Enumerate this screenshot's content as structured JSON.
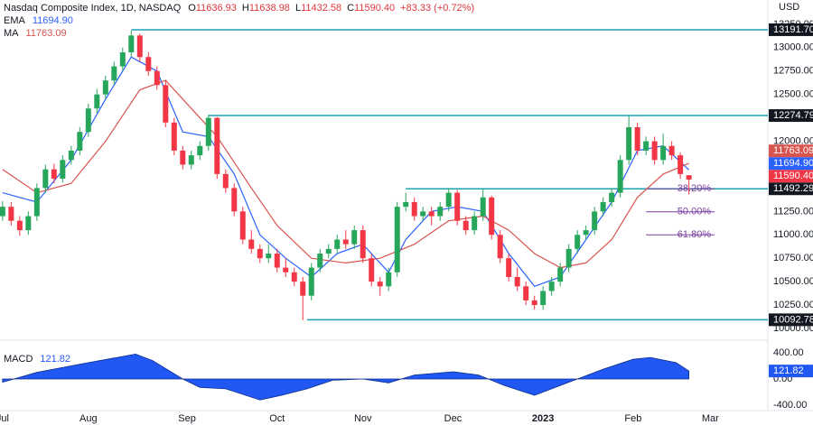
{
  "header": {
    "title": "Nasdaq Composite Index, 1D, NASDAQ",
    "ohlc": [
      {
        "label": "O",
        "value": "11636.93"
      },
      {
        "label": "H",
        "value": "11638.98"
      },
      {
        "label": "L",
        "value": "11432.58"
      },
      {
        "label": "C",
        "value": "11590.40"
      }
    ],
    "change": "+83.33 (+0.72%)"
  },
  "chart_data": [
    {
      "type": "candlestick",
      "currency": "USD",
      "up_color": "#26a65b",
      "down_color": "#f23645",
      "x": [
        0,
        2,
        4,
        6,
        8,
        10,
        12,
        14,
        16,
        18,
        20,
        22,
        24,
        26,
        28,
        30,
        32,
        34,
        36,
        38,
        40,
        42,
        44,
        46,
        48,
        50,
        52,
        54,
        56,
        58,
        60,
        62,
        64,
        66,
        68,
        70,
        72,
        74,
        76,
        78,
        80,
        82,
        84,
        86,
        88,
        90,
        92,
        94,
        96,
        98,
        100,
        102,
        104,
        106,
        108,
        110,
        112,
        114,
        116,
        118,
        120,
        122,
        124,
        126,
        128,
        130,
        132,
        134,
        136,
        138,
        140,
        142,
        144,
        146,
        148,
        150,
        152,
        154,
        156,
        158,
        160
      ],
      "candles": [
        [
          11200,
          11360,
          11150,
          11300
        ],
        [
          11300,
          11350,
          11100,
          11150
        ],
        [
          11150,
          11200,
          10990,
          11050
        ],
        [
          11050,
          11250,
          11000,
          11200
        ],
        [
          11200,
          11550,
          11150,
          11500
        ],
        [
          11500,
          11750,
          11450,
          11700
        ],
        [
          11700,
          11760,
          11550,
          11600
        ],
        [
          11600,
          11850,
          11560,
          11800
        ],
        [
          11800,
          11950,
          11750,
          11900
        ],
        [
          11900,
          12150,
          11850,
          12100
        ],
        [
          12100,
          12400,
          12050,
          12350
        ],
        [
          12350,
          12560,
          12300,
          12500
        ],
        [
          12500,
          12700,
          12450,
          12650
        ],
        [
          12650,
          12850,
          12600,
          12800
        ],
        [
          12800,
          13000,
          12750,
          12950
        ],
        [
          12950,
          13181,
          12900,
          13130
        ],
        [
          13130,
          13150,
          12850,
          12900
        ],
        [
          12900,
          12950,
          12700,
          12750
        ],
        [
          12750,
          12800,
          12550,
          12600
        ],
        [
          12600,
          12650,
          12150,
          12200
        ],
        [
          12200,
          12250,
          11850,
          11900
        ],
        [
          11900,
          11950,
          11700,
          11750
        ],
        [
          11750,
          11900,
          11700,
          11850
        ],
        [
          11850,
          12000,
          11800,
          11950
        ],
        [
          11950,
          12280,
          11900,
          12250
        ],
        [
          12250,
          12260,
          11600,
          11650
        ],
        [
          11650,
          11700,
          11450,
          11500
        ],
        [
          11500,
          11550,
          11200,
          11250
        ],
        [
          11250,
          11300,
          10900,
          10950
        ],
        [
          10950,
          11050,
          10800,
          10850
        ],
        [
          10850,
          10900,
          10700,
          10750
        ],
        [
          10750,
          10900,
          10700,
          10800
        ],
        [
          10800,
          10850,
          10600,
          10650
        ],
        [
          10650,
          10750,
          10550,
          10600
        ],
        [
          10600,
          10650,
          10450,
          10500
        ],
        [
          10500,
          10550,
          10088,
          10350
        ],
        [
          10350,
          10700,
          10300,
          10650
        ],
        [
          10650,
          10850,
          10600,
          10800
        ],
        [
          10800,
          10900,
          10750,
          10850
        ],
        [
          10850,
          11000,
          10800,
          10950
        ],
        [
          10950,
          11050,
          10850,
          10900
        ],
        [
          10900,
          11100,
          10850,
          11050
        ],
        [
          11050,
          11100,
          10700,
          10750
        ],
        [
          10750,
          10800,
          10450,
          10500
        ],
        [
          10500,
          10550,
          10350,
          10450
        ],
        [
          10450,
          10650,
          10400,
          10600
        ],
        [
          10600,
          11350,
          10550,
          11300
        ],
        [
          11300,
          11450,
          11250,
          11350
        ],
        [
          11350,
          11400,
          11150,
          11200
        ],
        [
          11200,
          11300,
          11150,
          11250
        ],
        [
          11250,
          11300,
          11100,
          11200
        ],
        [
          11200,
          11350,
          11150,
          11300
        ],
        [
          11300,
          11500,
          11250,
          11450
        ],
        [
          11450,
          11480,
          11100,
          11150
        ],
        [
          11150,
          11200,
          11000,
          11050
        ],
        [
          11050,
          11250,
          11000,
          11200
        ],
        [
          11200,
          11490,
          11150,
          11400
        ],
        [
          11400,
          11420,
          10950,
          11000
        ],
        [
          11000,
          11050,
          10700,
          10750
        ],
        [
          10750,
          10800,
          10500,
          10550
        ],
        [
          10550,
          10650,
          10400,
          10450
        ],
        [
          10450,
          10500,
          10250,
          10300
        ],
        [
          10300,
          10350,
          10200,
          10250
        ],
        [
          10250,
          10450,
          10200,
          10400
        ],
        [
          10400,
          10550,
          10350,
          10500
        ],
        [
          10500,
          10700,
          10450,
          10650
        ],
        [
          10650,
          10900,
          10600,
          10850
        ],
        [
          10850,
          11050,
          10800,
          11000
        ],
        [
          11000,
          11100,
          10950,
          11050
        ],
        [
          11050,
          11300,
          11000,
          11250
        ],
        [
          11250,
          11400,
          11200,
          11350
        ],
        [
          11350,
          11500,
          11300,
          11450
        ],
        [
          11450,
          11850,
          11400,
          11800
        ],
        [
          11800,
          12270,
          11750,
          12150
        ],
        [
          12150,
          12200,
          11850,
          11900
        ],
        [
          11900,
          12050,
          11850,
          12000
        ],
        [
          12000,
          12050,
          11750,
          11800
        ],
        [
          11800,
          12080,
          11750,
          11950
        ],
        [
          11950,
          12000,
          11800,
          11850
        ],
        [
          11850,
          11880,
          11600,
          11650
        ],
        [
          11636.93,
          11638.98,
          11432.58,
          11590.4
        ]
      ],
      "last_label": "11590.40",
      "series": [
        {
          "name": "EMA",
          "color": "#2962ff",
          "last_label": "11694.90",
          "x": [
            0,
            8,
            16,
            24,
            30,
            36,
            42,
            48,
            54,
            60,
            66,
            72,
            78,
            84,
            90,
            94,
            100,
            106,
            112,
            118,
            124,
            130,
            136,
            142,
            148,
            154,
            160
          ],
          "values": [
            11450,
            11350,
            11800,
            12450,
            12900,
            12750,
            12100,
            12050,
            11650,
            11000,
            10750,
            10550,
            10800,
            10900,
            10600,
            10950,
            11250,
            11300,
            11250,
            10800,
            10450,
            10550,
            10950,
            11350,
            11900,
            11950,
            11694.9
          ]
        },
        {
          "name": "MA",
          "color": "#d9534f",
          "last_label": "11763.09",
          "x": [
            0,
            8,
            16,
            24,
            32,
            38,
            44,
            50,
            58,
            64,
            72,
            80,
            88,
            96,
            104,
            112,
            118,
            124,
            130,
            136,
            142,
            148,
            154,
            160
          ],
          "values": [
            11700,
            11450,
            11550,
            12000,
            12550,
            12650,
            12350,
            12050,
            11500,
            11100,
            10750,
            10700,
            10750,
            10900,
            11150,
            11200,
            11050,
            10800,
            10650,
            10700,
            10950,
            11400,
            11650,
            11763.09
          ]
        }
      ],
      "levels": [
        {
          "value": 13191.7,
          "label": "13191.70",
          "x_start": 30
        },
        {
          "value": 12274.79,
          "label": "12274.79",
          "x_start": 48
        },
        {
          "value": 11492.29,
          "label": "11492.29",
          "x_start": 94
        },
        {
          "value": 10092.78,
          "label": "10092.78",
          "x_start": 71
        }
      ],
      "level_color": "#1ba2b3",
      "fib": [
        {
          "value": 11492,
          "label": "38.20%",
          "x": [
            150,
            166
          ]
        },
        {
          "value": 11246,
          "label": "50.00%",
          "x": [
            150,
            166
          ]
        },
        {
          "value": 11000,
          "label": "61.80%",
          "x": [
            150,
            166
          ]
        }
      ],
      "fib_color": "#7b3fa0",
      "xlim": [
        -0.6,
        178.4
      ],
      "ylim": [
        9894,
        13490
      ],
      "xticks": [
        {
          "value": 0,
          "label": "Jul"
        },
        {
          "value": 20,
          "label": "Aug"
        },
        {
          "value": 43,
          "label": "Sep"
        },
        {
          "value": 64,
          "label": "Oct"
        },
        {
          "value": 84,
          "label": "Nov"
        },
        {
          "value": 105,
          "label": "Dec"
        },
        {
          "value": 126,
          "label": "2023",
          "bold": true
        },
        {
          "value": 147,
          "label": "Feb"
        },
        {
          "value": 165,
          "label": "Mar"
        }
      ],
      "yticks": [
        {
          "value": 10000,
          "label": "10000.00"
        },
        {
          "value": 10250,
          "label": "10250.00"
        },
        {
          "value": 10500,
          "label": "10500.00"
        },
        {
          "value": 10750,
          "label": "10750.00"
        },
        {
          "value": 11000,
          "label": "11000.00"
        },
        {
          "value": 11250,
          "label": "11250.00"
        },
        {
          "value": 11500,
          "label": "11500.00"
        },
        {
          "value": 11750,
          "label": "11750.00"
        },
        {
          "value": 12000,
          "label": "12000.00"
        },
        {
          "value": 12250,
          "label": "12250.00"
        },
        {
          "value": 12500,
          "label": "12500.00"
        },
        {
          "value": 12750,
          "label": "12750.00"
        },
        {
          "value": 13000,
          "label": "13000.00"
        },
        {
          "value": 13250,
          "label": "13250.00"
        }
      ]
    },
    {
      "type": "area",
      "name": "MACD",
      "color": "#2157f3",
      "last_label": "121.82",
      "x": [
        0,
        8,
        20,
        31,
        35,
        42,
        46,
        52,
        60,
        65,
        71,
        77,
        84,
        90,
        96,
        105,
        111,
        117,
        124,
        128,
        134,
        140,
        147,
        151,
        157,
        160
      ],
      "values": [
        -50,
        100,
        250,
        380,
        280,
        0,
        -130,
        -150,
        -320,
        -250,
        -150,
        -20,
        0,
        -60,
        60,
        110,
        60,
        -100,
        -250,
        -150,
        0,
        150,
        300,
        330,
        250,
        121.82
      ],
      "ylim": [
        -483,
        579
      ],
      "yticks": [
        {
          "value": 400,
          "label": "400.00"
        },
        {
          "value": 0,
          "label": "0.00"
        },
        {
          "value": -400,
          "label": "-400.00"
        }
      ]
    }
  ]
}
